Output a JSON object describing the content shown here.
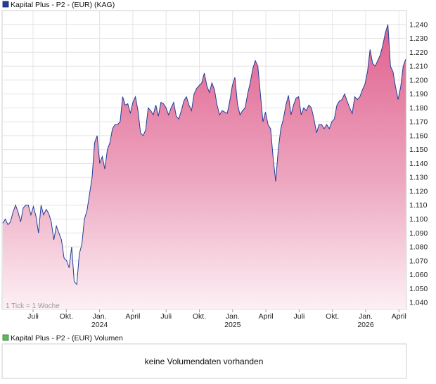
{
  "chart_data": {
    "type": "area",
    "legend": {
      "label": "Kapital Plus - P2 - (EUR) (KAG)",
      "color": "#1f3f99",
      "placement": "top-left"
    },
    "note": "1 Tick = 1 Woche",
    "ylim": [
      1.035,
      1.25
    ],
    "y_ticks": [
      "1.240",
      "1.230",
      "1.220",
      "1.210",
      "1.200",
      "1.190",
      "1.180",
      "1.170",
      "1.160",
      "1.150",
      "1.140",
      "1.130",
      "1.120",
      "1.110",
      "1.100",
      "1.090",
      "1.080",
      "1.070",
      "1.060",
      "1.050",
      "1.040"
    ],
    "x_ticks": [
      {
        "label": "Juli",
        "sub": ""
      },
      {
        "label": "Okt.",
        "sub": ""
      },
      {
        "label": "Jan.",
        "sub": "2024"
      },
      {
        "label": "April",
        "sub": ""
      },
      {
        "label": "Juli",
        "sub": ""
      },
      {
        "label": "Okt.",
        "sub": ""
      },
      {
        "label": "Jan.",
        "sub": "2025"
      },
      {
        "label": "April",
        "sub": ""
      },
      {
        "label": "Juli",
        "sub": ""
      },
      {
        "label": "Okt.",
        "sub": ""
      },
      {
        "label": "Jan.",
        "sub": "2026"
      },
      {
        "label": "April",
        "sub": ""
      }
    ],
    "grid": true,
    "series": [
      {
        "values": [
          1.097,
          1.1,
          1.096,
          1.098,
          1.105,
          1.11,
          1.105,
          1.098,
          1.108,
          1.11,
          1.11,
          1.103,
          1.109,
          1.102,
          1.09,
          1.11,
          1.103,
          1.107,
          1.104,
          1.098,
          1.085,
          1.095,
          1.09,
          1.085,
          1.072,
          1.07,
          1.065,
          1.08,
          1.055,
          1.053,
          1.075,
          1.082,
          1.1,
          1.106,
          1.118,
          1.13,
          1.155,
          1.16,
          1.14,
          1.145,
          1.136,
          1.15,
          1.155,
          1.165,
          1.168,
          1.168,
          1.17,
          1.188,
          1.182,
          1.183,
          1.176,
          1.184,
          1.188,
          1.178,
          1.162,
          1.16,
          1.164,
          1.18,
          1.178,
          1.175,
          1.182,
          1.174,
          1.184,
          1.183,
          1.18,
          1.175,
          1.18,
          1.184,
          1.174,
          1.172,
          1.178,
          1.185,
          1.188,
          1.182,
          1.178,
          1.19,
          1.194,
          1.196,
          1.198,
          1.205,
          1.196,
          1.191,
          1.198,
          1.193,
          1.182,
          1.175,
          1.178,
          1.177,
          1.176,
          1.185,
          1.196,
          1.202,
          1.183,
          1.175,
          1.178,
          1.18,
          1.19,
          1.198,
          1.208,
          1.214,
          1.21,
          1.19,
          1.17,
          1.177,
          1.168,
          1.165,
          1.144,
          1.127,
          1.15,
          1.165,
          1.172,
          1.182,
          1.189,
          1.175,
          1.182,
          1.187,
          1.188,
          1.175,
          1.18,
          1.178,
          1.182,
          1.18,
          1.172,
          1.162,
          1.168,
          1.168,
          1.165,
          1.168,
          1.165,
          1.17,
          1.172,
          1.182,
          1.185,
          1.186,
          1.19,
          1.185,
          1.18,
          1.176,
          1.188,
          1.186,
          1.188,
          1.193,
          1.197,
          1.206,
          1.222,
          1.212,
          1.21,
          1.214,
          1.218,
          1.225,
          1.234,
          1.24,
          1.21,
          1.206,
          1.195,
          1.186,
          1.195,
          1.21,
          1.215
        ]
      }
    ],
    "volume": {
      "legend": {
        "label": "Kapital Plus - P2 - (EUR) Volumen",
        "color": "#5cb85c"
      },
      "message": "keine Volumendaten vorhanden"
    }
  }
}
